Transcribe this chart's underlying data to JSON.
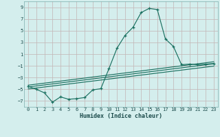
{
  "xlabel": "Humidex (Indice chaleur)",
  "bg_color": "#d4eeed",
  "grid_color": "#c4b8b8",
  "line_color": "#1a7060",
  "main_x": [
    0,
    1,
    2,
    3,
    4,
    5,
    6,
    7,
    8,
    9,
    10,
    11,
    12,
    13,
    14,
    15,
    16,
    17,
    18,
    19,
    20,
    21,
    22,
    23
  ],
  "main_y": [
    -4.5,
    -5.0,
    -5.6,
    -7.2,
    -6.3,
    -6.7,
    -6.6,
    -6.4,
    -5.1,
    -4.9,
    -1.5,
    2.0,
    4.2,
    5.6,
    8.1,
    8.8,
    8.6,
    3.6,
    2.3,
    -0.8,
    -0.7,
    -0.8,
    -0.7,
    -0.6
  ],
  "band_lines": [
    {
      "x": [
        0,
        23
      ],
      "y": [
        -4.3,
        -0.3
      ]
    },
    {
      "x": [
        0,
        23
      ],
      "y": [
        -4.6,
        -0.65
      ]
    },
    {
      "x": [
        0,
        23
      ],
      "y": [
        -4.95,
        -1.05
      ]
    }
  ],
  "ylim": [
    -8,
    10
  ],
  "xlim": [
    -0.5,
    23.5
  ],
  "yticks": [
    -7,
    -5,
    -3,
    -1,
    1,
    3,
    5,
    7,
    9
  ],
  "xticks": [
    0,
    1,
    2,
    3,
    4,
    5,
    6,
    7,
    8,
    9,
    10,
    11,
    12,
    13,
    14,
    15,
    16,
    17,
    18,
    19,
    20,
    21,
    22,
    23
  ],
  "xlabel_fontsize": 6.0,
  "tick_fontsize": 5.0,
  "linewidth": 0.85,
  "marker_size": 3.5
}
